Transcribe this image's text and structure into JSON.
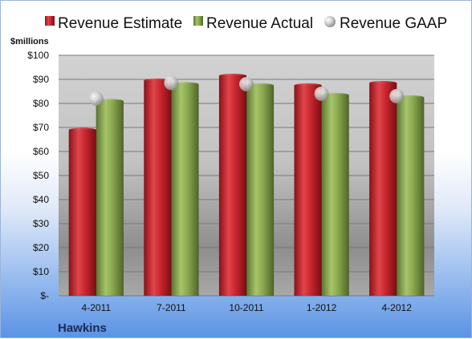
{
  "chart_data": {
    "type": "bar",
    "company": "Hawkins",
    "unit_label": "$millions",
    "categories": [
      "4-2011",
      "7-2011",
      "10-2011",
      "1-2012",
      "4-2012"
    ],
    "series": [
      {
        "name": "Revenue Estimate",
        "kind": "bar",
        "values": [
          69,
          89.5,
          91.5,
          87.5,
          88.5
        ]
      },
      {
        "name": "Revenue Actual",
        "kind": "bar",
        "values": [
          81,
          88,
          87.5,
          83.5,
          82.5
        ]
      },
      {
        "name": "Revenue GAAP",
        "kind": "marker",
        "values": [
          82,
          88.5,
          88,
          84,
          83
        ]
      }
    ],
    "ylim": [
      0,
      100
    ],
    "y_ticks": [
      "$-",
      "$10",
      "$20",
      "$30",
      "$40",
      "$50",
      "$60",
      "$70",
      "$80",
      "$90",
      "$100"
    ],
    "grid": true,
    "legend_position": "top",
    "colors": {
      "estimate": "#c8262e",
      "actual": "#8aa84e",
      "gaap": "#c8c8c8"
    }
  }
}
